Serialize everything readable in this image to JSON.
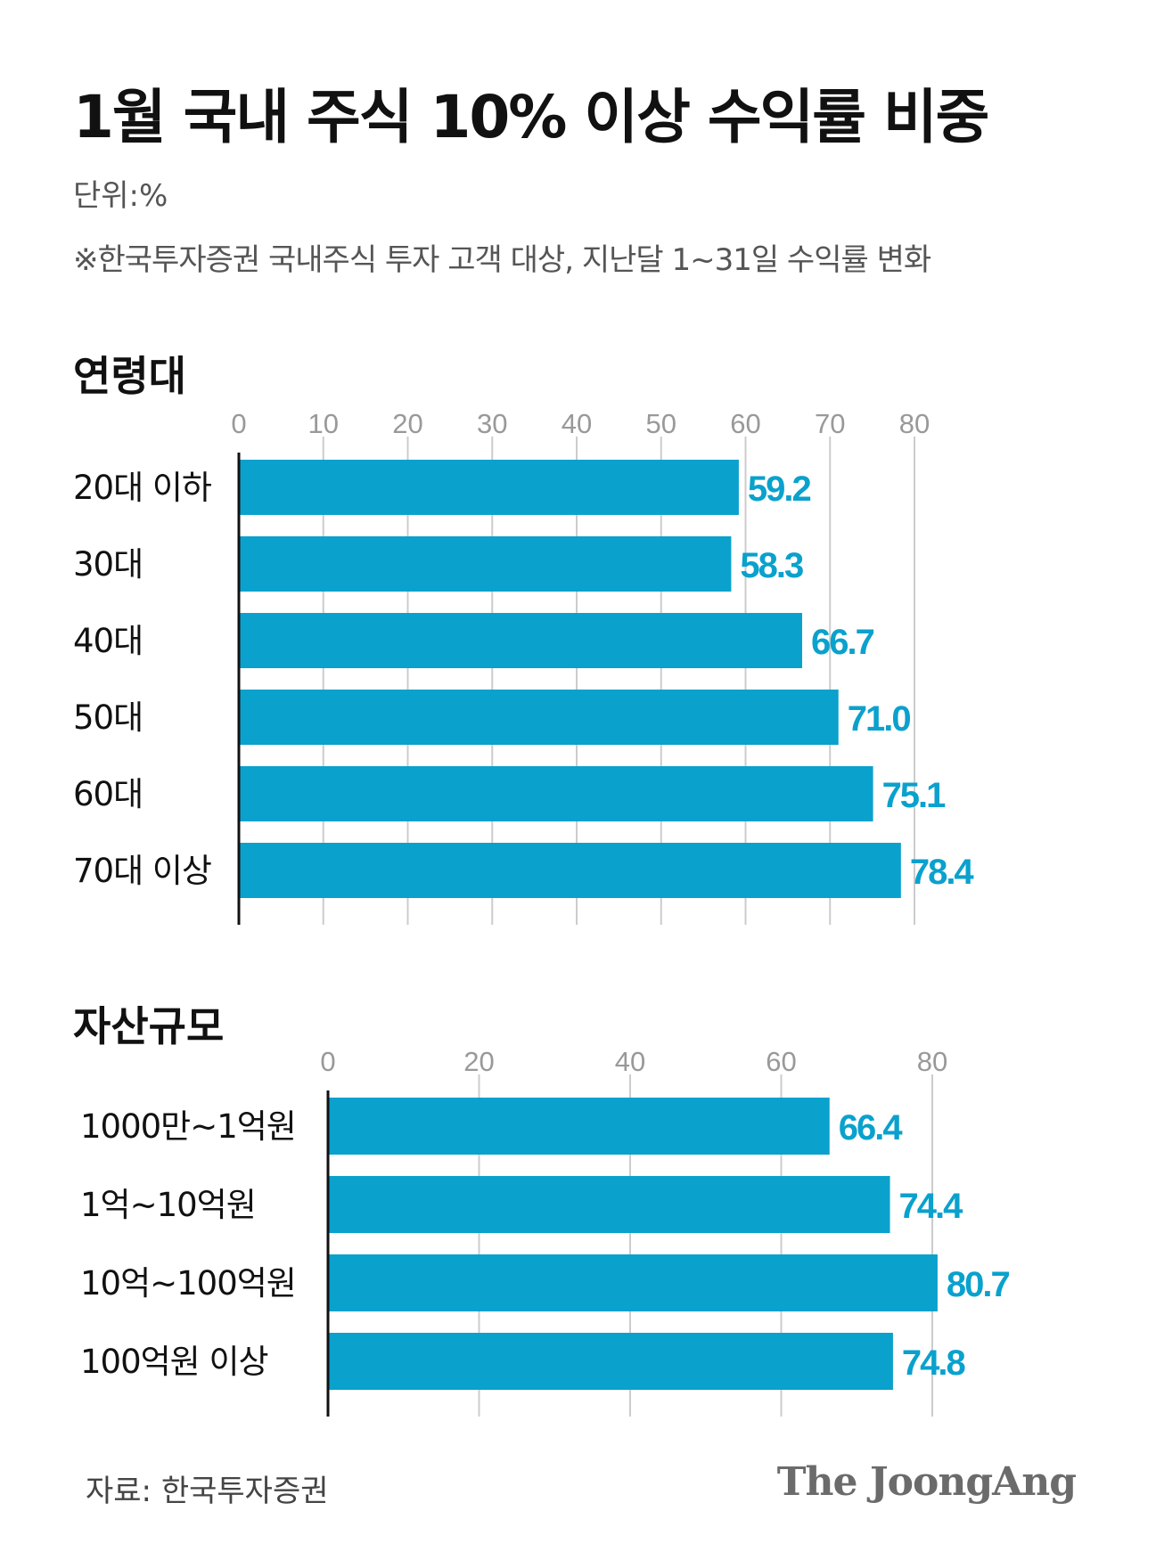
{
  "header": {
    "title": "1월 국내 주식 10% 이상 수익률 비중",
    "unit": "단위:%",
    "note": "※한국투자증권 국내주식 투자 고객 대상, 지난달 1~31일 수익률 변화"
  },
  "colors": {
    "bar": "#0aa1cd",
    "value_label": "#0aa1cd",
    "grid": "#cccccc",
    "tick": "#999999",
    "axis": "#111111"
  },
  "chart_data": [
    {
      "type": "bar",
      "orientation": "horizontal",
      "title": "연령대",
      "categories": [
        "20대 이하",
        "30대",
        "40대",
        "50대",
        "60대",
        "70대 이상"
      ],
      "values": [
        59.2,
        58.3,
        66.7,
        71.0,
        75.1,
        78.4
      ],
      "value_labels": [
        "59.2",
        "58.3",
        "66.7",
        "71.0",
        "75.1",
        "78.4"
      ],
      "xticks": [
        0,
        10,
        20,
        30,
        40,
        50,
        60,
        70,
        80
      ],
      "xlim": [
        0,
        80
      ],
      "grid": true
    },
    {
      "type": "bar",
      "orientation": "horizontal",
      "title": "자산규모",
      "categories": [
        "1000만~1억원",
        "1억~10억원",
        "10억~100억원",
        "100억원 이상"
      ],
      "values": [
        66.4,
        74.4,
        80.7,
        74.8
      ],
      "value_labels": [
        "66.4",
        "74.4",
        "80.7",
        "74.8"
      ],
      "xticks": [
        0,
        20,
        40,
        60,
        80
      ],
      "xlim": [
        0,
        80
      ],
      "grid": true
    }
  ],
  "footer": {
    "source": "자료: 한국투자증권",
    "logo": "The JoongAng"
  }
}
